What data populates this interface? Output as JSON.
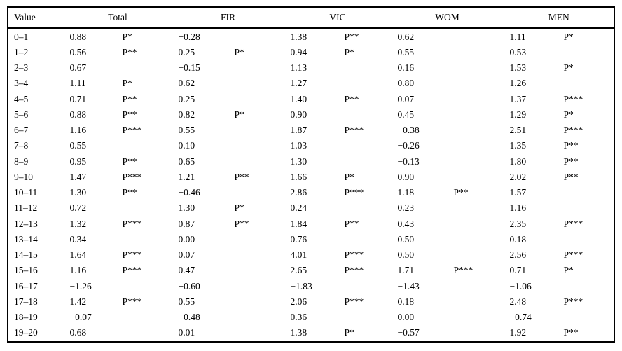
{
  "table": {
    "header": {
      "value_label": "Value",
      "groups": [
        "Total",
        "FIR",
        "VIC",
        "WOM",
        "MEN"
      ]
    },
    "rows": [
      [
        "0–1",
        "0.88",
        "P*",
        "−0.28",
        "",
        "1.38",
        "P**",
        "0.62",
        "",
        "1.11",
        "P*"
      ],
      [
        "1–2",
        "0.56",
        "P**",
        "0.25",
        "P*",
        "0.94",
        "P*",
        "0.55",
        "",
        "0.53",
        ""
      ],
      [
        "2–3",
        "0.67",
        "",
        "−0.15",
        "",
        "1.13",
        "",
        "0.16",
        "",
        "1.53",
        "P*"
      ],
      [
        "3–4",
        "1.11",
        "P*",
        "0.62",
        "",
        "1.27",
        "",
        "0.80",
        "",
        "1.26",
        ""
      ],
      [
        "4–5",
        "0.71",
        "P**",
        "0.25",
        "",
        "1.40",
        "P**",
        "0.07",
        "",
        "1.37",
        "P***"
      ],
      [
        "5–6",
        "0.88",
        "P**",
        "0.82",
        "P*",
        "0.90",
        "",
        "0.45",
        "",
        "1.29",
        "P*"
      ],
      [
        "6–7",
        "1.16",
        "P***",
        "0.55",
        "",
        "1.87",
        "P***",
        "−0.38",
        "",
        "2.51",
        "P***"
      ],
      [
        "7–8",
        "0.55",
        "",
        "0.10",
        "",
        "1.03",
        "",
        "−0.26",
        "",
        "1.35",
        "P**"
      ],
      [
        "8–9",
        "0.95",
        "P**",
        "0.65",
        "",
        "1.30",
        "",
        "−0.13",
        "",
        "1.80",
        "P**"
      ],
      [
        "9–10",
        "1.47",
        "P***",
        "1.21",
        "P**",
        "1.66",
        "P*",
        "0.90",
        "",
        "2.02",
        "P**"
      ],
      [
        "10–11",
        "1.30",
        "P**",
        "−0.46",
        "",
        "2.86",
        "P***",
        "1.18",
        "P**",
        "1.57",
        ""
      ],
      [
        "11–12",
        "0.72",
        "",
        "1.30",
        "P*",
        "0.24",
        "",
        "0.23",
        "",
        "1.16",
        ""
      ],
      [
        "12–13",
        "1.32",
        "P***",
        "0.87",
        "P**",
        "1.84",
        "P**",
        "0.43",
        "",
        "2.35",
        "P***"
      ],
      [
        "13–14",
        "0.34",
        "",
        "0.00",
        "",
        "0.76",
        "",
        "0.50",
        "",
        "0.18",
        ""
      ],
      [
        "14–15",
        "1.64",
        "P***",
        "0.07",
        "",
        "4.01",
        "P***",
        "0.50",
        "",
        "2.56",
        "P***"
      ],
      [
        "15–16",
        "1.16",
        "P***",
        "0.47",
        "",
        "2.65",
        "P***",
        "1.71",
        "P***",
        "0.71",
        "P*"
      ],
      [
        "16–17",
        "−1.26",
        "",
        "−0.60",
        "",
        "−1.83",
        "",
        "−1.43",
        "",
        "−1.06",
        ""
      ],
      [
        "17–18",
        "1.42",
        "P***",
        "0.55",
        "",
        "2.06",
        "P***",
        "0.18",
        "",
        "2.48",
        "P***"
      ],
      [
        "18–19",
        "−0.07",
        "",
        "−0.48",
        "",
        "0.36",
        "",
        "0.00",
        "",
        "−0.74",
        ""
      ],
      [
        "19–20",
        "0.68",
        "",
        "0.01",
        "",
        "1.38",
        "P*",
        "−0.57",
        "",
        "1.92",
        "P**"
      ]
    ]
  }
}
